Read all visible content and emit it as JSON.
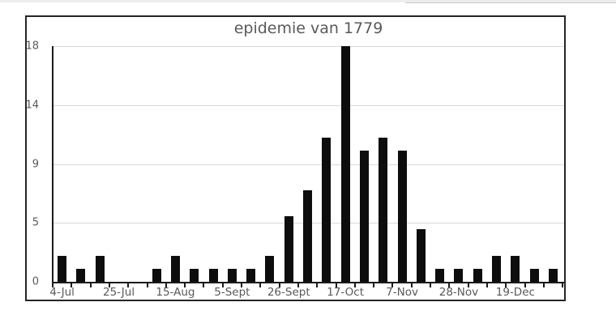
{
  "chart_data": {
    "type": "bar",
    "title": "epidemie van 1779",
    "values": [
      2,
      1,
      2,
      0,
      0,
      1,
      2,
      1,
      1,
      1,
      1,
      2,
      5,
      7,
      11,
      18,
      10,
      11,
      10,
      4,
      1,
      1,
      1,
      2,
      2,
      1,
      1
    ],
    "x_tick_labels": [
      "4-Jul",
      "25-Jul",
      "15-Aug",
      "5-Sept",
      "26-Sept",
      "17-Oct",
      "7-Nov",
      "28-Nov",
      "19-Dec"
    ],
    "x_label_interval": 3,
    "y_ticks": [
      {
        "label": "0",
        "value": 0
      },
      {
        "label": "5",
        "value": 4.5
      },
      {
        "label": "9",
        "value": 9
      },
      {
        "label": "14",
        "value": 13.5
      },
      {
        "label": "18",
        "value": 18
      }
    ],
    "ylim": [
      0,
      18
    ],
    "grid": true,
    "legend": "none",
    "bar_color": "#0d0d0d",
    "grid_color": "#d9d9d9",
    "axis_color": "#1a1a1a",
    "tick_color": "#1a1a1a",
    "label_color": "#595959",
    "title_color": "#595959",
    "frame_border_color": "#262626",
    "background_color": "#ffffff"
  }
}
